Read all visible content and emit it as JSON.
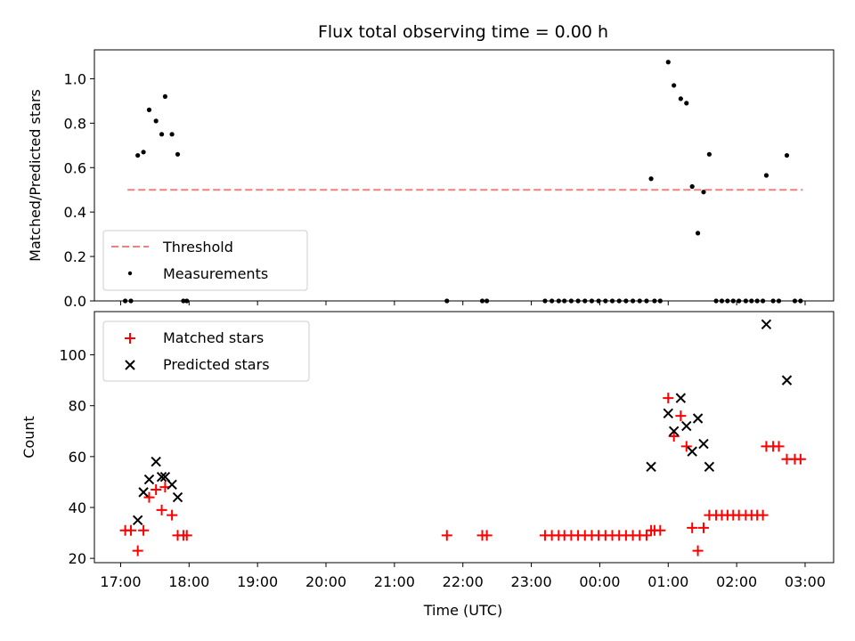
{
  "chart_data": {
    "title": "Flux total observing time = 0.00 h",
    "xlabel": "Time (UTC)",
    "xaxis_type": "time",
    "xlim": [
      "2024-01-01 16:37",
      "2024-01-02 03:25"
    ],
    "xticks": [
      {
        "t": "2024-01-01 17:00",
        "label": "17:00"
      },
      {
        "t": "2024-01-01 18:00",
        "label": "18:00"
      },
      {
        "t": "2024-01-01 19:00",
        "label": "19:00"
      },
      {
        "t": "2024-01-01 20:00",
        "label": "20:00"
      },
      {
        "t": "2024-01-01 21:00",
        "label": "21:00"
      },
      {
        "t": "2024-01-01 22:00",
        "label": "22:00"
      },
      {
        "t": "2024-01-01 23:00",
        "label": "23:00"
      },
      {
        "t": "2024-01-02 00:00",
        "label": "00:00"
      },
      {
        "t": "2024-01-02 01:00",
        "label": "01:00"
      },
      {
        "t": "2024-01-02 02:00",
        "label": "02:00"
      },
      {
        "t": "2024-01-02 03:00",
        "label": "03:00"
      }
    ],
    "top": {
      "type": "scatter+line",
      "ylabel": "Matched/Predicted stars",
      "ylim": [
        0,
        1.13
      ],
      "yticks": [
        0.0,
        0.2,
        0.4,
        0.6,
        0.8,
        1.0
      ],
      "ytick_labels": [
        "0.0",
        "0.2",
        "0.4",
        "0.6",
        "0.8",
        "1.0"
      ],
      "legend": {
        "placement": "lower-left",
        "entries": [
          "Threshold",
          "Measurements"
        ]
      },
      "threshold": {
        "name": "Threshold",
        "value": 0.5,
        "x": [
          "2024-01-01 17:06",
          "2024-01-02 02:58"
        ],
        "color": "#f08080",
        "style": "dashed"
      },
      "measurements": {
        "name": "Measurements",
        "color": "#000000",
        "points": [
          [
            "2024-01-01 17:04",
            0.0
          ],
          [
            "2024-01-01 17:09",
            0.0
          ],
          [
            "2024-01-01 17:15",
            0.655
          ],
          [
            "2024-01-01 17:20",
            0.67
          ],
          [
            "2024-01-01 17:25",
            0.86
          ],
          [
            "2024-01-01 17:31",
            0.81
          ],
          [
            "2024-01-01 17:36",
            0.75
          ],
          [
            "2024-01-01 17:39",
            0.92
          ],
          [
            "2024-01-01 17:45",
            0.75
          ],
          [
            "2024-01-01 17:50",
            0.66
          ],
          [
            "2024-01-01 17:55",
            0.0
          ],
          [
            "2024-01-01 17:58",
            0.0
          ],
          [
            "2024-01-01 21:46",
            0.0
          ],
          [
            "2024-01-01 22:17",
            0.0
          ],
          [
            "2024-01-01 22:21",
            0.0
          ],
          [
            "2024-01-01 23:12",
            0.0
          ],
          [
            "2024-01-01 23:18",
            0.0
          ],
          [
            "2024-01-01 23:24",
            0.0
          ],
          [
            "2024-01-01 23:29",
            0.0
          ],
          [
            "2024-01-01 23:35",
            0.0
          ],
          [
            "2024-01-01 23:41",
            0.0
          ],
          [
            "2024-01-01 23:47",
            0.0
          ],
          [
            "2024-01-01 23:53",
            0.0
          ],
          [
            "2024-01-01 23:59",
            0.0
          ],
          [
            "2024-01-02 00:05",
            0.0
          ],
          [
            "2024-01-02 00:11",
            0.0
          ],
          [
            "2024-01-02 00:17",
            0.0
          ],
          [
            "2024-01-02 00:23",
            0.0
          ],
          [
            "2024-01-02 00:29",
            0.0
          ],
          [
            "2024-01-02 00:35",
            0.0
          ],
          [
            "2024-01-02 00:41",
            0.0
          ],
          [
            "2024-01-02 00:45",
            0.55
          ],
          [
            "2024-01-02 00:48",
            0.0
          ],
          [
            "2024-01-02 00:53",
            0.0
          ],
          [
            "2024-01-02 01:00",
            1.075
          ],
          [
            "2024-01-02 01:05",
            0.97
          ],
          [
            "2024-01-02 01:11",
            0.91
          ],
          [
            "2024-01-02 01:16",
            0.89
          ],
          [
            "2024-01-02 01:21",
            0.515
          ],
          [
            "2024-01-02 01:26",
            0.305
          ],
          [
            "2024-01-02 01:31",
            0.49
          ],
          [
            "2024-01-02 01:36",
            0.66
          ],
          [
            "2024-01-02 01:42",
            0.0
          ],
          [
            "2024-01-02 01:47",
            0.0
          ],
          [
            "2024-01-02 01:52",
            0.0
          ],
          [
            "2024-01-02 01:57",
            0.0
          ],
          [
            "2024-01-02 02:02",
            0.0
          ],
          [
            "2024-01-02 02:08",
            0.0
          ],
          [
            "2024-01-02 02:13",
            0.0
          ],
          [
            "2024-01-02 02:18",
            0.0
          ],
          [
            "2024-01-02 02:23",
            0.0
          ],
          [
            "2024-01-02 02:26",
            0.565
          ],
          [
            "2024-01-02 02:32",
            0.0
          ],
          [
            "2024-01-02 02:37",
            0.0
          ],
          [
            "2024-01-02 02:44",
            0.655
          ],
          [
            "2024-01-02 02:51",
            0.0
          ],
          [
            "2024-01-02 02:56",
            0.0
          ]
        ]
      }
    },
    "bottom": {
      "type": "scatter",
      "ylabel": "Count",
      "ylim": [
        18.3,
        117
      ],
      "yticks": [
        20,
        40,
        60,
        80,
        100
      ],
      "ytick_labels": [
        "20",
        "40",
        "60",
        "80",
        "100"
      ],
      "legend": {
        "placement": "upper-left",
        "entries": [
          "Matched stars",
          "Predicted stars"
        ]
      },
      "series": [
        {
          "name": "Matched stars",
          "marker": "plus",
          "color": "#ff0000",
          "points": [
            [
              "2024-01-01 17:04",
              31
            ],
            [
              "2024-01-01 17:09",
              31
            ],
            [
              "2024-01-01 17:15",
              23
            ],
            [
              "2024-01-01 17:20",
              31
            ],
            [
              "2024-01-01 17:25",
              44
            ],
            [
              "2024-01-01 17:31",
              47
            ],
            [
              "2024-01-01 17:36",
              39
            ],
            [
              "2024-01-01 17:39",
              48
            ],
            [
              "2024-01-01 17:45",
              37
            ],
            [
              "2024-01-01 17:50",
              29
            ],
            [
              "2024-01-01 17:55",
              29
            ],
            [
              "2024-01-01 17:58",
              29
            ],
            [
              "2024-01-01 21:46",
              29
            ],
            [
              "2024-01-01 22:17",
              29
            ],
            [
              "2024-01-01 22:21",
              29
            ],
            [
              "2024-01-01 23:12",
              29
            ],
            [
              "2024-01-01 23:18",
              29
            ],
            [
              "2024-01-01 23:24",
              29
            ],
            [
              "2024-01-01 23:29",
              29
            ],
            [
              "2024-01-01 23:35",
              29
            ],
            [
              "2024-01-01 23:41",
              29
            ],
            [
              "2024-01-01 23:47",
              29
            ],
            [
              "2024-01-01 23:53",
              29
            ],
            [
              "2024-01-01 23:59",
              29
            ],
            [
              "2024-01-02 00:05",
              29
            ],
            [
              "2024-01-02 00:11",
              29
            ],
            [
              "2024-01-02 00:17",
              29
            ],
            [
              "2024-01-02 00:23",
              29
            ],
            [
              "2024-01-02 00:29",
              29
            ],
            [
              "2024-01-02 00:35",
              29
            ],
            [
              "2024-01-02 00:41",
              29
            ],
            [
              "2024-01-02 00:45",
              31
            ],
            [
              "2024-01-02 00:48",
              31
            ],
            [
              "2024-01-02 00:53",
              31
            ],
            [
              "2024-01-02 01:00",
              83
            ],
            [
              "2024-01-02 01:05",
              68
            ],
            [
              "2024-01-02 01:11",
              76
            ],
            [
              "2024-01-02 01:16",
              64
            ],
            [
              "2024-01-02 01:21",
              32
            ],
            [
              "2024-01-02 01:26",
              23
            ],
            [
              "2024-01-02 01:31",
              32
            ],
            [
              "2024-01-02 01:36",
              37
            ],
            [
              "2024-01-02 01:42",
              37
            ],
            [
              "2024-01-02 01:47",
              37
            ],
            [
              "2024-01-02 01:52",
              37
            ],
            [
              "2024-01-02 01:57",
              37
            ],
            [
              "2024-01-02 02:02",
              37
            ],
            [
              "2024-01-02 02:08",
              37
            ],
            [
              "2024-01-02 02:13",
              37
            ],
            [
              "2024-01-02 02:18",
              37
            ],
            [
              "2024-01-02 02:23",
              37
            ],
            [
              "2024-01-02 02:26",
              64
            ],
            [
              "2024-01-02 02:32",
              64
            ],
            [
              "2024-01-02 02:37",
              64
            ],
            [
              "2024-01-02 02:44",
              59
            ],
            [
              "2024-01-02 02:51",
              59
            ],
            [
              "2024-01-02 02:56",
              59
            ]
          ]
        },
        {
          "name": "Predicted stars",
          "marker": "x",
          "color": "#000000",
          "points": [
            [
              "2024-01-01 17:15",
              35
            ],
            [
              "2024-01-01 17:20",
              46
            ],
            [
              "2024-01-01 17:25",
              51
            ],
            [
              "2024-01-01 17:31",
              58
            ],
            [
              "2024-01-01 17:36",
              52
            ],
            [
              "2024-01-01 17:39",
              52
            ],
            [
              "2024-01-01 17:45",
              49
            ],
            [
              "2024-01-01 17:50",
              44
            ],
            [
              "2024-01-02 00:45",
              56
            ],
            [
              "2024-01-02 01:00",
              77
            ],
            [
              "2024-01-02 01:05",
              70
            ],
            [
              "2024-01-02 01:11",
              83
            ],
            [
              "2024-01-02 01:16",
              72
            ],
            [
              "2024-01-02 01:21",
              62
            ],
            [
              "2024-01-02 01:26",
              75
            ],
            [
              "2024-01-02 01:31",
              65
            ],
            [
              "2024-01-02 01:36",
              56
            ],
            [
              "2024-01-02 02:26",
              112
            ],
            [
              "2024-01-02 02:44",
              90
            ]
          ]
        }
      ]
    }
  }
}
